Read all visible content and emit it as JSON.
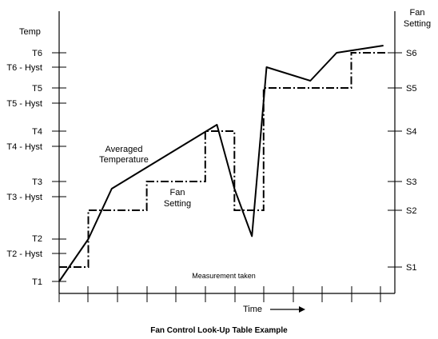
{
  "figure": {
    "caption": "Fan Control Look-Up Table Example",
    "y_left_title": "Temp",
    "y_right_title_line1": "Fan",
    "y_right_title_line2": "Setting",
    "x_label": "Time",
    "x_arrow": "arrow-right-icon",
    "annotation_measurement": "Measurement taken",
    "curve_label_temp_line1": "Averaged",
    "curve_label_temp_line2": "Temperature",
    "curve_label_fan_line1": "Fan",
    "curve_label_fan_line2": "Setting"
  },
  "chart_data": {
    "type": "line",
    "title": "Fan Control Look-Up Table Example",
    "xlabel": "Time",
    "ylabel": "Temp",
    "y2label": "Fan Setting",
    "left_ticks": [
      "T6",
      "T6 - Hyst",
      "T5",
      "T5 - Hyst",
      "T4",
      "T4 - Hyst",
      "T3",
      "T3 - Hyst",
      "T2",
      "T2 - Hyst",
      "T1"
    ],
    "right_ticks": [
      "S6",
      "S5",
      "S4",
      "S3",
      "S2",
      "S1"
    ],
    "x_ticks": 12,
    "series": [
      {
        "name": "Averaged Temperature",
        "style": "solid",
        "points": [
          [
            0,
            1.0
          ],
          [
            1,
            2.5
          ],
          [
            1.8,
            4.0
          ],
          [
            5.4,
            6.0
          ],
          [
            6.0,
            4.0
          ],
          [
            6.6,
            2.6
          ],
          [
            7.1,
            8.2
          ],
          [
            8.6,
            7.8
          ],
          [
            9.5,
            8.65
          ],
          [
            11.1,
            8.85
          ]
        ]
      },
      {
        "name": "Fan Setting",
        "style": "dash-dot",
        "points": [
          [
            0,
            1.5
          ],
          [
            1,
            1.5
          ],
          [
            1,
            3.5
          ],
          [
            3,
            3.5
          ],
          [
            3,
            4.1
          ],
          [
            5,
            4.1
          ],
          [
            5,
            5.6
          ],
          [
            6,
            5.6
          ],
          [
            6,
            3.5
          ],
          [
            7,
            3.5
          ],
          [
            7,
            7.5
          ],
          [
            10,
            7.5
          ],
          [
            10,
            8.5
          ],
          [
            11.2,
            8.5
          ]
        ]
      }
    ]
  }
}
